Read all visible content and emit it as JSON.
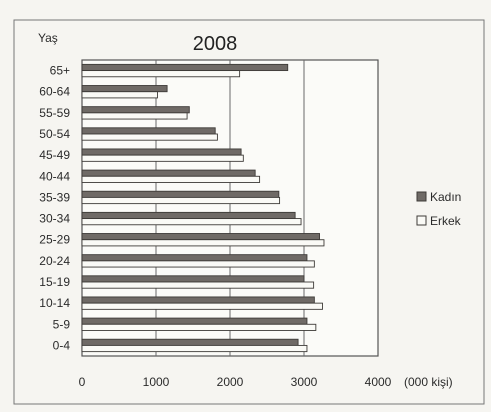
{
  "chart_data": {
    "type": "bar",
    "orientation": "horizontal",
    "title": "2008",
    "ylabel": "Yaş",
    "xlabel": "(000 kişi)",
    "xlim": [
      0,
      4000
    ],
    "xticks": [
      0,
      1000,
      2000,
      3000,
      4000
    ],
    "grid": true,
    "legend_position": "right",
    "categories": [
      "0-4",
      "5-9",
      "10-14",
      "15-19",
      "20-24",
      "25-29",
      "30-34",
      "35-39",
      "40-44",
      "45-49",
      "50-54",
      "55-59",
      "60-64",
      "65+"
    ],
    "series": [
      {
        "name": "Kadın",
        "color": "#6f6a66",
        "values": [
          2920,
          3040,
          3140,
          3000,
          3040,
          3210,
          2880,
          2660,
          2340,
          2150,
          1800,
          1450,
          1150,
          2780
        ]
      },
      {
        "name": "Erkek",
        "color": "#fafaf6",
        "values": [
          3040,
          3160,
          3250,
          3130,
          3140,
          3270,
          2960,
          2670,
          2400,
          2180,
          1830,
          1420,
          1020,
          2130
        ]
      }
    ]
  }
}
